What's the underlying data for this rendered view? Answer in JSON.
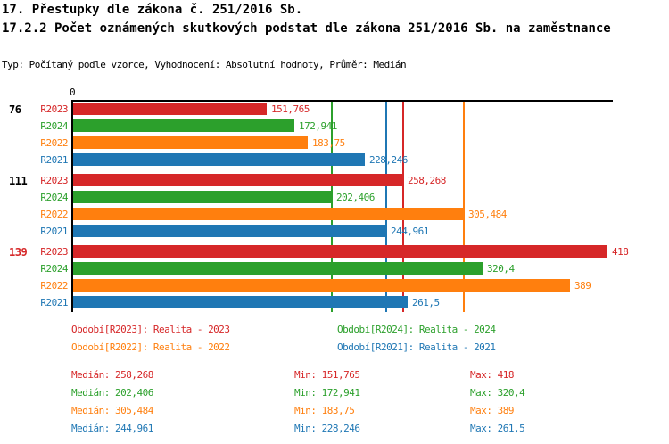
{
  "header": {
    "title": "17. Přestupky dle zákona č. 251/2016 Sb.",
    "subtitle": "17.2.2 Počet oznámených skutkových podstat dle zákona 251/2016 Sb. na zaměstnance",
    "meta": "Typ: Počítaný podle vzorce, Vyhodnocení: Absolutní hodnoty, Průměr: Medián"
  },
  "colors": {
    "axis": "#000000",
    "R2023": "#d62728",
    "R2024": "#2ca02c",
    "R2022": "#ff7f0e",
    "R2021": "#1f77b4"
  },
  "chart_data": {
    "type": "bar",
    "orientation": "horizontal",
    "title": "17.2.2 Počet oznámených skutkových podstat dle zákona 251/2016 Sb. na zaměstnance",
    "x_axis": {
      "min": 0,
      "tick_labels": [
        "0"
      ],
      "max_shown_value": 418,
      "grid": false
    },
    "series_order": [
      "R2023",
      "R2024",
      "R2022",
      "R2021"
    ],
    "series_colors": {
      "R2023": "#d62728",
      "R2024": "#2ca02c",
      "R2022": "#ff7f0e",
      "R2021": "#1f77b4"
    },
    "groups": [
      {
        "label": "76",
        "label_color": "#000000",
        "bars": [
          {
            "series": "R2023",
            "value": 151.765,
            "display": "151,765"
          },
          {
            "series": "R2024",
            "value": 172.941,
            "display": "172,941"
          },
          {
            "series": "R2022",
            "value": 183.75,
            "display": "183,75"
          },
          {
            "series": "R2021",
            "value": 228.246,
            "display": "228,246"
          }
        ]
      },
      {
        "label": "111",
        "label_color": "#000000",
        "bars": [
          {
            "series": "R2023",
            "value": 258.268,
            "display": "258,268"
          },
          {
            "series": "R2024",
            "value": 202.406,
            "display": "202,406"
          },
          {
            "series": "R2022",
            "value": 305.484,
            "display": "305,484"
          },
          {
            "series": "R2021",
            "value": 244.961,
            "display": "244,961"
          }
        ]
      },
      {
        "label": "139",
        "label_color": "#d62728",
        "bars": [
          {
            "series": "R2023",
            "value": 418,
            "display": "418"
          },
          {
            "series": "R2024",
            "value": 320.4,
            "display": "320,4"
          },
          {
            "series": "R2022",
            "value": 389,
            "display": "389"
          },
          {
            "series": "R2021",
            "value": 261.5,
            "display": "261,5"
          }
        ]
      }
    ],
    "median_lines": [
      {
        "series": "R2023",
        "value": 258.268
      },
      {
        "series": "R2024",
        "value": 202.406
      },
      {
        "series": "R2022",
        "value": 305.484
      },
      {
        "series": "R2021",
        "value": 244.961
      }
    ],
    "stats_summary": {
      "R2023": {
        "median": 258.268,
        "min": 151.765,
        "max": 418
      },
      "R2024": {
        "median": 202.406,
        "min": 172.941,
        "max": 320.4
      },
      "R2022": {
        "median": 305.484,
        "min": 183.75,
        "max": 389
      },
      "R2021": {
        "median": 244.961,
        "min": 228.246,
        "max": 261.5
      }
    }
  },
  "legend": {
    "items": [
      {
        "text": "Období[R2023]: Realita - 2023",
        "color": "#d62728"
      },
      {
        "text": "Období[R2024]: Realita - 2024",
        "color": "#2ca02c"
      },
      {
        "text": "Období[R2022]: Realita - 2022",
        "color": "#ff7f0e"
      },
      {
        "text": "Období[R2021]: Realita - 2021",
        "color": "#1f77b4"
      }
    ]
  },
  "stats": {
    "rows": [
      {
        "median": "Medián: 258,268",
        "min": "Min: 151,765",
        "max": "Max: 418",
        "color": "#d62728"
      },
      {
        "median": "Medián: 202,406",
        "min": "Min: 172,941",
        "max": "Max: 320,4",
        "color": "#2ca02c"
      },
      {
        "median": "Medián: 305,484",
        "min": "Min: 183,75",
        "max": "Max: 389",
        "color": "#ff7f0e"
      },
      {
        "median": "Medián: 244,961",
        "min": "Min: 228,246",
        "max": "Max: 261,5",
        "color": "#1f77b4"
      }
    ]
  }
}
